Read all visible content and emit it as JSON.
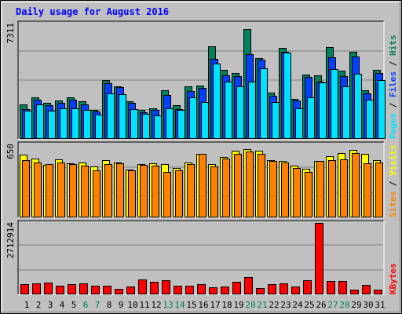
{
  "title": "Daily usage for August 2016",
  "colors": {
    "hits": "#00805c",
    "files": "#0040ff",
    "pages": "#00e0ff",
    "visits": "#ffff00",
    "sites": "#ff8000",
    "kbytes": "#ff0000",
    "weekend_day": "#00805c",
    "weekday": "#000000",
    "plot_bg": "#c0c0c0",
    "grid": "#808080",
    "title": "#0000ff"
  },
  "chart_data": [
    {
      "type": "bar",
      "panel": "hits-files-pages",
      "ytick_label": "7311",
      "ylim": [
        0,
        7311
      ],
      "legend_parts": [
        "Pages",
        "Files",
        "Hits"
      ],
      "x": [
        1,
        2,
        3,
        4,
        5,
        6,
        7,
        8,
        9,
        10,
        11,
        12,
        13,
        14,
        15,
        16,
        17,
        18,
        19,
        20,
        21,
        22,
        23,
        24,
        25,
        26,
        27,
        28,
        29,
        30,
        31
      ],
      "series": [
        {
          "name": "Hits",
          "values": [
            2130,
            2620,
            2250,
            2410,
            2610,
            2330,
            1800,
            3700,
            3320,
            2360,
            1790,
            1920,
            3030,
            2100,
            3300,
            3380,
            5840,
            4350,
            4170,
            6940,
            5090,
            2900,
            5780,
            2520,
            4080,
            4030,
            5820,
            4300,
            5520,
            3050,
            4340
          ]
        },
        {
          "name": "Files",
          "values": [
            1860,
            2460,
            2100,
            2260,
            2430,
            2140,
            1720,
            3520,
            3240,
            2240,
            1640,
            1800,
            2770,
            1850,
            2980,
            3220,
            5070,
            3990,
            3950,
            5380,
            4990,
            2700,
            5500,
            2400,
            3920,
            3620,
            5140,
            3970,
            5200,
            2860,
            4150
          ]
        },
        {
          "name": "Pages",
          "values": [
            1750,
            2150,
            1750,
            1900,
            1920,
            1820,
            1520,
            2860,
            2820,
            1830,
            1540,
            1460,
            1920,
            1820,
            2620,
            2310,
            4760,
            3630,
            3280,
            3620,
            4470,
            2300,
            5460,
            1910,
            2580,
            3560,
            4400,
            3330,
            4130,
            2470,
            3700
          ]
        }
      ]
    },
    {
      "type": "bar",
      "panel": "visits-sites",
      "ytick_label": "650",
      "ylim": [
        0,
        650
      ],
      "legend_parts": [
        "Sites",
        "Visits"
      ],
      "x": [
        1,
        2,
        3,
        4,
        5,
        6,
        7,
        8,
        9,
        10,
        11,
        12,
        13,
        14,
        15,
        16,
        17,
        18,
        19,
        20,
        21,
        22,
        23,
        24,
        25,
        26,
        27,
        28,
        29,
        30,
        31
      ],
      "series": [
        {
          "name": "Visits",
          "values": [
            560,
            520,
            468,
            514,
            480,
            488,
            450,
            508,
            490,
            425,
            475,
            480,
            470,
            440,
            490,
            565,
            472,
            540,
            590,
            610,
            595,
            512,
            500,
            460,
            430,
            500,
            545,
            570,
            600,
            562,
            510
          ]
        },
        {
          "name": "Sites",
          "values": [
            510,
            484,
            470,
            490,
            474,
            462,
            415,
            470,
            480,
            418,
            464,
            460,
            400,
            414,
            470,
            562,
            452,
            520,
            568,
            588,
            562,
            500,
            490,
            438,
            404,
            500,
            508,
            515,
            570,
            480,
            488
          ]
        }
      ]
    },
    {
      "type": "bar",
      "panel": "kbytes",
      "ytick_label": "2712914",
      "ylim": [
        0,
        2712914
      ],
      "legend_parts": [
        "KBytes"
      ],
      "x": [
        1,
        2,
        3,
        4,
        5,
        6,
        7,
        8,
        9,
        10,
        11,
        12,
        13,
        14,
        15,
        16,
        17,
        18,
        19,
        20,
        21,
        22,
        23,
        24,
        25,
        26,
        27,
        28,
        29,
        30,
        31
      ],
      "series": [
        {
          "name": "KBytes",
          "values": [
            360000,
            400000,
            410000,
            300000,
            360000,
            380000,
            310000,
            300000,
            170000,
            270000,
            530000,
            450000,
            500000,
            300000,
            300000,
            350000,
            250000,
            260000,
            440000,
            630000,
            220000,
            360000,
            390000,
            270000,
            500000,
            2712914,
            480000,
            480000,
            150000,
            340000,
            160000
          ]
        }
      ]
    }
  ]
}
